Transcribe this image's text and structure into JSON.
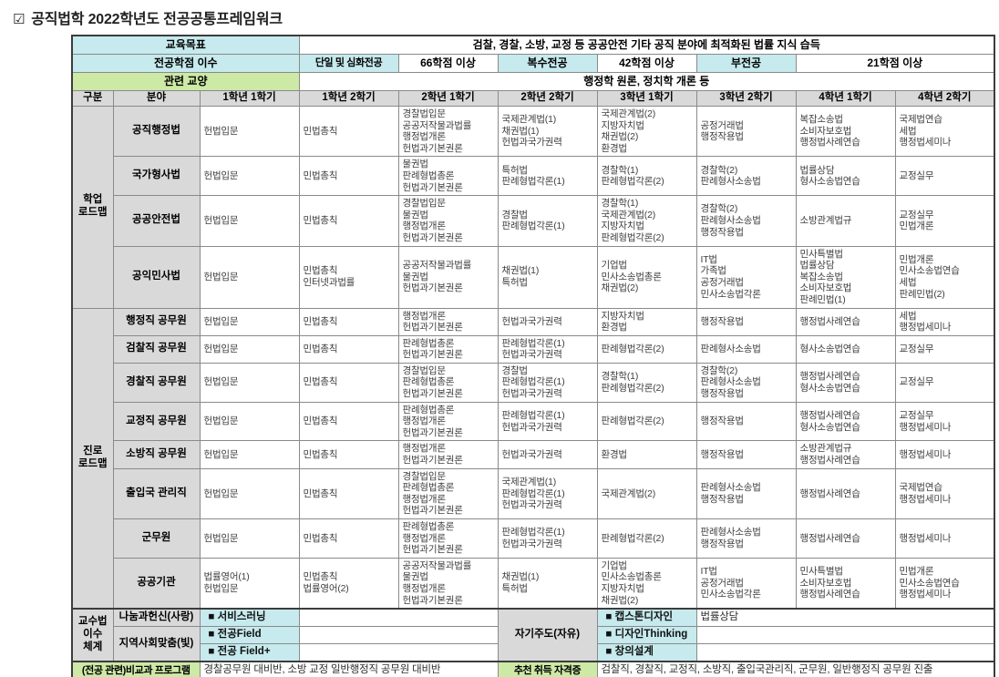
{
  "title_icon": "☑",
  "title": "공직법학 2022학년도 전공공통프레임워크",
  "colors": {
    "accent_cyan": "#c6eaed",
    "accent_green": "#cde9a6",
    "header_gray": "#d9d9d9"
  },
  "top": {
    "goal_label": "교육목표",
    "goal_value": "검찰, 경찰, 소방, 교정 등 공공안전 기타 공직 분야에 최적화된 법률 지식 습득",
    "credits_label": "전공학점 이수",
    "credit_items": [
      {
        "label": "단일 및 심화전공",
        "value": "66학점 이상"
      },
      {
        "label": "복수전공",
        "value": "42학점 이상"
      },
      {
        "label": "부전공",
        "value": "21학점 이상"
      }
    ],
    "liberal_label": "관련 교양",
    "liberal_value": "행정학 원론, 정치학 개론 등"
  },
  "grid": {
    "headers": [
      "구분",
      "분야",
      "1학년 1학기",
      "1학년 2학기",
      "2학년 1학기",
      "2학년 2학기",
      "3학년 1학기",
      "3학년 2학기",
      "4학년 1학기",
      "4학년 2학기"
    ],
    "groups": [
      {
        "label": [
          "학업",
          "로드맵"
        ],
        "rows": [
          {
            "field": "공직행정법",
            "semesters": [
              [
                "헌법입문"
              ],
              [
                "민법총칙"
              ],
              [
                "경찰법입문",
                "공공저작물과법률",
                "행정법개론",
                "헌법과기본권론"
              ],
              [
                "국제관계법(1)",
                "채권법(1)",
                "헌법과국가권력"
              ],
              [
                "국제관계법(2)",
                "지방자치법",
                "채권법(2)",
                "환경법"
              ],
              [
                "공정거래법",
                "행정작용법"
              ],
              [
                "복잡소송법",
                "소비자보호법",
                "행정법사례연습"
              ],
              [
                "국제법연습",
                "세법",
                "행정법세미나"
              ]
            ]
          },
          {
            "field": "국가형사법",
            "semesters": [
              [
                "헌법입문"
              ],
              [
                "민법총칙"
              ],
              [
                "물권법",
                "판례형법총론",
                "헌법과기본권론"
              ],
              [
                "특허법",
                "판례형법각론(1)"
              ],
              [
                "경찰학(1)",
                "판례형법각론(2)"
              ],
              [
                "경찰학(2)",
                "판례형사소송법"
              ],
              [
                "법률상담",
                "형사소송법연습"
              ],
              [
                "교정실무"
              ]
            ]
          },
          {
            "field": "공공안전법",
            "semesters": [
              [
                "헌법입문"
              ],
              [
                "민법총칙"
              ],
              [
                "경찰법입문",
                "물권법",
                "행정법개론",
                "헌법과기본권론"
              ],
              [
                "경찰법",
                "판례형법각론(1)"
              ],
              [
                "경찰학(1)",
                "국제관계법(2)",
                "지방자치법",
                "판례형법각론(2)"
              ],
              [
                "경찰학(2)",
                "판례형사소송법",
                "행정작용법"
              ],
              [
                "소방관계법규"
              ],
              [
                "교정실무",
                "민법개론"
              ]
            ]
          },
          {
            "field": "공익민사법",
            "semesters": [
              [
                "헌법입문"
              ],
              [
                "민법총칙",
                "인터넷과법률"
              ],
              [
                "공공저작물과법률",
                "물권법",
                "헌법과기본권론"
              ],
              [
                "채권법(1)",
                "특허법"
              ],
              [
                "기업법",
                "민사소송법총론",
                "채권법(2)"
              ],
              [
                "IT법",
                "가족법",
                "공정거래법",
                "민사소송법각론"
              ],
              [
                "민사특별법",
                "법률상담",
                "복잡소송법",
                "소비자보호법",
                "판례민법(1)"
              ],
              [
                "민법개론",
                "민사소송법연습",
                "세법",
                "판례민법(2)"
              ]
            ]
          }
        ]
      },
      {
        "label": [
          "진로",
          "로드맵"
        ],
        "rows": [
          {
            "field": "행정직 공무원",
            "semesters": [
              [
                "헌법입문"
              ],
              [
                "민법총칙"
              ],
              [
                "행정법개론",
                "헌법과기본권론"
              ],
              [
                "헌법과국가권력"
              ],
              [
                "지방자치법",
                "환경법"
              ],
              [
                "행정작용법"
              ],
              [
                "행정법사례연습"
              ],
              [
                "세법",
                "행정법세미나"
              ]
            ]
          },
          {
            "field": "검찰직 공무원",
            "semesters": [
              [
                "헌법입문"
              ],
              [
                "민법총칙"
              ],
              [
                "판례형법총론",
                "헌법과기본권론"
              ],
              [
                "판례형법각론(1)",
                "헌법과국가권력"
              ],
              [
                "판례형법각론(2)"
              ],
              [
                "판례형사소송법"
              ],
              [
                "형사소송법연습"
              ],
              [
                "교정실무"
              ]
            ]
          },
          {
            "field": "경찰직 공무원",
            "semesters": [
              [
                "헌법입문"
              ],
              [
                "민법총칙"
              ],
              [
                "경찰법입문",
                "판례형법총론",
                "헌법과기본권론"
              ],
              [
                "경찰법",
                "판례형법각론(1)",
                "헌법과국가권력"
              ],
              [
                "경찰학(1)",
                "판례형법각론(2)"
              ],
              [
                "경찰학(2)",
                "판례형사소송법",
                "행정작용법"
              ],
              [
                "행정법사례연습",
                "형사소송법연습"
              ],
              [
                "교정실무"
              ]
            ]
          },
          {
            "field": "교정직 공무원",
            "semesters": [
              [
                "헌법입문"
              ],
              [
                "민법총칙"
              ],
              [
                "판례형법총론",
                "행정법개론",
                "헌법과기본권론"
              ],
              [
                "판례형법각론(1)",
                "헌법과국가권력"
              ],
              [
                "판례형법각론(2)"
              ],
              [
                "행정작용법"
              ],
              [
                "행정법사례연습",
                "형사소송법연습"
              ],
              [
                "교정실무",
                "행정법세미나"
              ]
            ]
          },
          {
            "field": "소방직 공무원",
            "semesters": [
              [
                "헌법입문"
              ],
              [
                "민법총칙"
              ],
              [
                "행정법개론",
                "헌법과기본권론"
              ],
              [
                "헌법과국가권력"
              ],
              [
                "환경법"
              ],
              [
                "행정작용법"
              ],
              [
                "소방관계법규",
                "행정법사례연습"
              ],
              [
                "행정법세미나"
              ]
            ]
          },
          {
            "field": "출입국 관리직",
            "semesters": [
              [
                "헌법입문"
              ],
              [
                "민법총칙"
              ],
              [
                "경찰법입문",
                "판례형법총론",
                "행정법개론",
                "헌법과기본권론"
              ],
              [
                "국제관계법(1)",
                "판례형법각론(1)",
                "헌법과국가권력"
              ],
              [
                "국제관계법(2)"
              ],
              [
                "판례형사소송법",
                "행정작용법"
              ],
              [
                "행정법사례연습"
              ],
              [
                "국제법연습",
                "행정법세미나"
              ]
            ]
          },
          {
            "field": "군무원",
            "semesters": [
              [
                "헌법입문"
              ],
              [
                "민법총칙"
              ],
              [
                "판례형법총론",
                "행정법개론",
                "헌법과기본권론"
              ],
              [
                "판례형법각론(1)",
                "헌법과국가권력"
              ],
              [
                "판례형법각론(2)"
              ],
              [
                "판례형사소송법",
                "행정작용법"
              ],
              [
                "행정법사례연습"
              ],
              [
                "행정법세미나"
              ]
            ]
          },
          {
            "field": "공공기관",
            "semesters": [
              [
                "법률영어(1)",
                "헌법입문"
              ],
              [
                "민법총칙",
                "법률영어(2)"
              ],
              [
                "공공저작물과법률",
                "물권법",
                "행정법개론",
                "헌법과기본권론"
              ],
              [
                "채권법(1)",
                "특허법"
              ],
              [
                "기업법",
                "민사소송법총론",
                "지방자치법",
                "채권법(2)"
              ],
              [
                "IT법",
                "공정거래법",
                "민사소송법각론"
              ],
              [
                "민사특별법",
                "소비자보호법",
                "행정법사례연습"
              ],
              [
                "민법개론",
                "민사소송법연습",
                "행정법세미나"
              ]
            ]
          }
        ]
      }
    ]
  },
  "teaching": {
    "header": [
      "교수법",
      "이수",
      "체계"
    ],
    "self_label": "자기주도(자유)",
    "rows": [
      {
        "category": "나눔과헌신(사랑)",
        "item": "■  서비스러닝",
        "right_item": "■  캡스톤디자인",
        "right_value": "법률상담"
      },
      {
        "category": "지역사회맞춤(빛)",
        "item": "■  전공Field",
        "right_item": "■  디자인Thinking",
        "right_value": ""
      },
      {
        "item": "■  전공 Field+",
        "right_item": "■  창의설계",
        "right_value": ""
      }
    ]
  },
  "footer": {
    "program_label": "(전공 관련)비교과 프로그램",
    "program_value": "경찰공무원 대비반, 소방 교정 일반행정직 공무원 대비반",
    "cert_label": "추천 취득 자격증",
    "cert_value": "검찰직, 경찰직, 교정직, 소방직, 출입국관리직, 군무원, 일반행정직 공무원 진출"
  }
}
